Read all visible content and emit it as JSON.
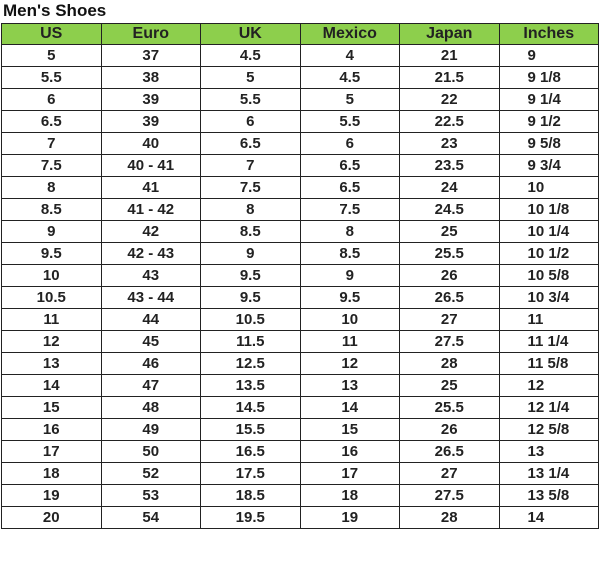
{
  "title": "Men's Shoes",
  "header_color": "#8dcf4c",
  "columns": [
    "US",
    "Euro",
    "UK",
    "Mexico",
    "Japan",
    "Inches"
  ],
  "rows": [
    [
      "5",
      "37",
      "4.5",
      "4",
      "21",
      "9"
    ],
    [
      "5.5",
      "38",
      "5",
      "4.5",
      "21.5",
      "9 1/8"
    ],
    [
      "6",
      "39",
      "5.5",
      "5",
      "22",
      "9 1/4"
    ],
    [
      "6.5",
      "39",
      "6",
      "5.5",
      "22.5",
      "9 1/2"
    ],
    [
      "7",
      "40",
      "6.5",
      "6",
      "23",
      "9 5/8"
    ],
    [
      "7.5",
      "40 - 41",
      "7",
      "6.5",
      "23.5",
      "9 3/4"
    ],
    [
      "8",
      "41",
      "7.5",
      "6.5",
      "24",
      "10"
    ],
    [
      "8.5",
      "41 - 42",
      "8",
      "7.5",
      "24.5",
      "10 1/8"
    ],
    [
      "9",
      "42",
      "8.5",
      "8",
      "25",
      "10 1/4"
    ],
    [
      "9.5",
      "42 - 43",
      "9",
      "8.5",
      "25.5",
      "10 1/2"
    ],
    [
      "10",
      "43",
      "9.5",
      "9",
      "26",
      "10 5/8"
    ],
    [
      "10.5",
      "43 - 44",
      "9.5",
      "9.5",
      "26.5",
      "10 3/4"
    ],
    [
      "11",
      "44",
      "10.5",
      "10",
      "27",
      "11"
    ],
    [
      "12",
      "45",
      "11.5",
      "11",
      "27.5",
      "11 1/4"
    ],
    [
      "13",
      "46",
      "12.5",
      "12",
      "28",
      "11 5/8"
    ],
    [
      "14",
      "47",
      "13.5",
      "13",
      "25",
      "12"
    ],
    [
      "15",
      "48",
      "14.5",
      "14",
      "25.5",
      "12 1/4"
    ],
    [
      "16",
      "49",
      "15.5",
      "15",
      "26",
      "12 5/8"
    ],
    [
      "17",
      "50",
      "16.5",
      "16",
      "26.5",
      "13"
    ],
    [
      "18",
      "52",
      "17.5",
      "17",
      "27",
      "13 1/4"
    ],
    [
      "19",
      "53",
      "18.5",
      "18",
      "27.5",
      "13 5/8"
    ],
    [
      "20",
      "54",
      "19.5",
      "19",
      "28",
      "14"
    ]
  ]
}
